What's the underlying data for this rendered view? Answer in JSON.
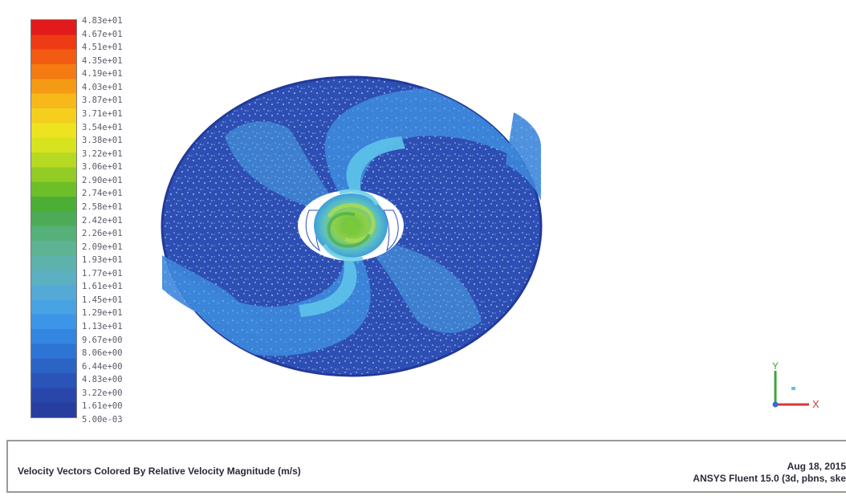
{
  "legend": {
    "colors": [
      "#e31a1c",
      "#ee3b14",
      "#f25c12",
      "#f47a12",
      "#f59a14",
      "#f7b81a",
      "#f4cf1e",
      "#eee31f",
      "#d8e31f",
      "#b8d922",
      "#93cc25",
      "#6dbf2a",
      "#4caf35",
      "#4cab56",
      "#56b07a",
      "#5db394",
      "#5eb2ab",
      "#5cb0c2",
      "#54a9d6",
      "#48a2e3",
      "#3c95e6",
      "#3385df",
      "#2e74d4",
      "#2c64c6",
      "#2a54b8",
      "#2947ab",
      "#283e9e"
    ],
    "labels": [
      "4.83e+01",
      "4.67e+01",
      "4.51e+01",
      "4.35e+01",
      "4.19e+01",
      "4.03e+01",
      "3.87e+01",
      "3.71e+01",
      "3.54e+01",
      "3.38e+01",
      "3.22e+01",
      "3.06e+01",
      "2.90e+01",
      "2.74e+01",
      "2.58e+01",
      "2.42e+01",
      "2.26e+01",
      "2.09e+01",
      "1.93e+01",
      "1.77e+01",
      "1.61e+01",
      "1.45e+01",
      "1.29e+01",
      "1.13e+01",
      "9.67e+00",
      "8.06e+00",
      "6.44e+00",
      "4.83e+00",
      "3.22e+00",
      "1.61e+00",
      "5.00e-03"
    ]
  },
  "axes": {
    "x_label": "X",
    "y_label": "Y",
    "x_color": "#d43a3a",
    "y_color": "#3aa63a",
    "z_color": "#2e6fd6"
  },
  "info": {
    "description": "Velocity Vectors Colored By Relative Velocity Magnitude (m/s)",
    "date": "Aug 18, 2015",
    "software": "ANSYS Fluent 15.0 (3d, pbns, ske"
  },
  "colors": {
    "deep_blue": "#2a47a8",
    "mid_blue": "#3a7fd6",
    "light_blue": "#4aa6e6",
    "cyan": "#5ec3ea",
    "green": "#7fc63c",
    "hub_white": "#ffffff"
  }
}
